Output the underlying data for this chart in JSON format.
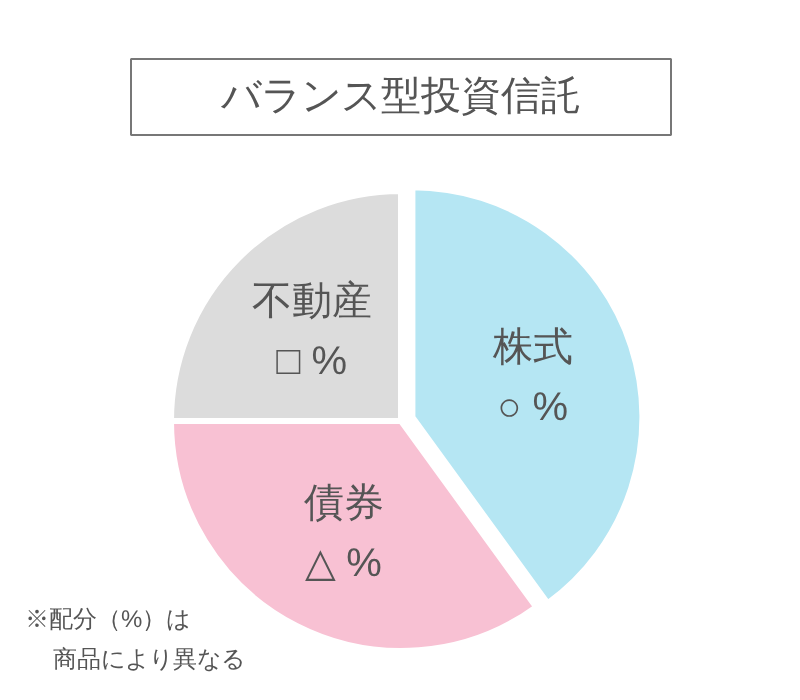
{
  "chart_data": {
    "type": "pie",
    "title": "バランス型投資信託",
    "categories": [
      "株式",
      "債券",
      "不動産"
    ],
    "values": [
      40,
      35,
      25
    ],
    "colors": [
      "#b5e6f3",
      "#f8c1d3",
      "#dcdcdc"
    ],
    "value_labels": [
      "○ %",
      "△ %",
      "□ %"
    ],
    "annotations": [
      "※配分（%）は",
      "商品により異なる"
    ]
  }
}
